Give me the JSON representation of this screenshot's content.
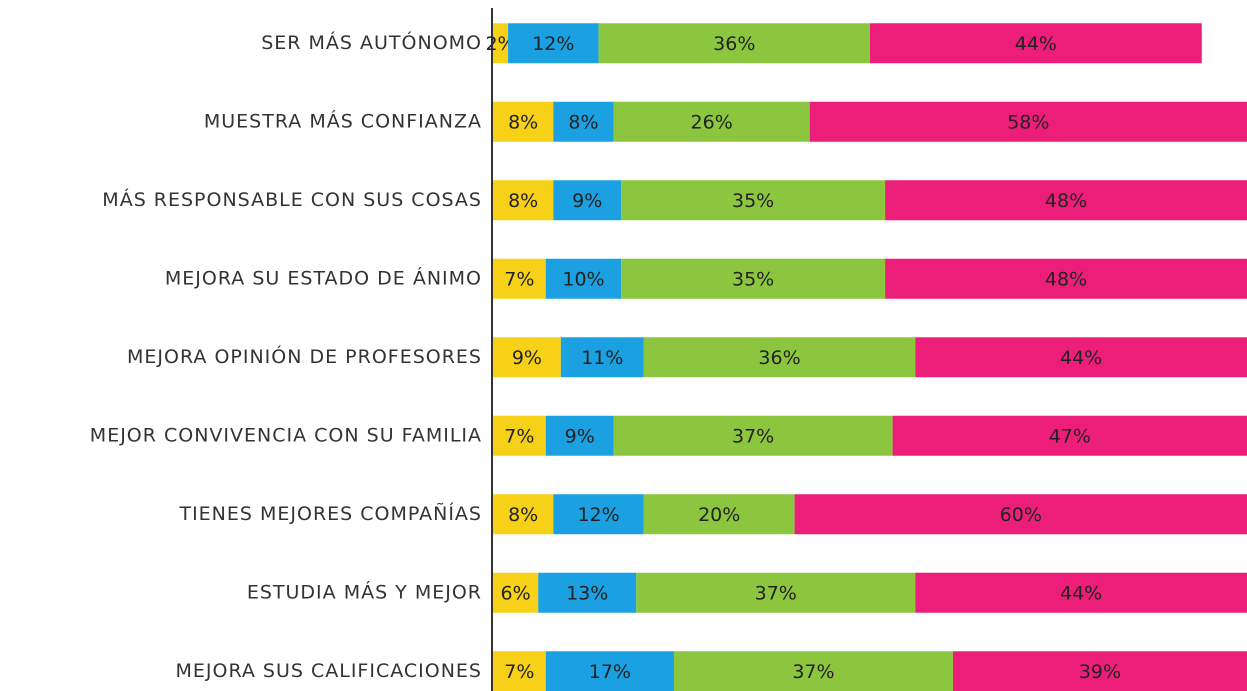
{
  "chart_data": {
    "type": "stacked-bar-horizontal",
    "categories": [
      "SER MÁS AUTÓNOMO",
      "MUESTRA MÁS CONFIANZA",
      "MÁS RESPONSABLE CON SUS COSAS",
      "MEJORA SU ESTADO DE ÁNIMO",
      "MEJORA OPINIÓN DE PROFESORES",
      "MEJOR CONVIVENCIA CON SU FAMILIA",
      "TIENES MEJORES COMPAÑÍAS",
      "ESTUDIA MÁS Y MEJOR",
      "MEJORA SUS CALIFICACIONES"
    ],
    "xlim": [
      0,
      100
    ],
    "series": [
      {
        "color": "#f7d117",
        "values": [
          2,
          8,
          8,
          7,
          9,
          7,
          8,
          6,
          7
        ],
        "value_labels": [
          "2%",
          "8%",
          "8%",
          "7%",
          "9%",
          "7%",
          "8%",
          "6%",
          "7%"
        ]
      },
      {
        "color": "#1ba0e1",
        "values": [
          12,
          8,
          9,
          10,
          11,
          9,
          12,
          13,
          17
        ],
        "value_labels": [
          "12%",
          "8%",
          "9%",
          "10%",
          "11%",
          "9%",
          "12%",
          "13%",
          "17%"
        ]
      },
      {
        "color": "#8cc63f",
        "values": [
          36,
          26,
          35,
          35,
          36,
          37,
          20,
          37,
          37
        ],
        "value_labels": [
          "36%",
          "26%",
          "35%",
          "35%",
          "36%",
          "37%",
          "20%",
          "37%",
          "37%"
        ]
      },
      {
        "color": "#ec1e79",
        "values": [
          44,
          58,
          48,
          48,
          44,
          47,
          60,
          44,
          39
        ],
        "value_labels": [
          "44%",
          "58%",
          "48%",
          "48%",
          "44%",
          "47%",
          "60%",
          "44%",
          "39%"
        ]
      }
    ]
  }
}
